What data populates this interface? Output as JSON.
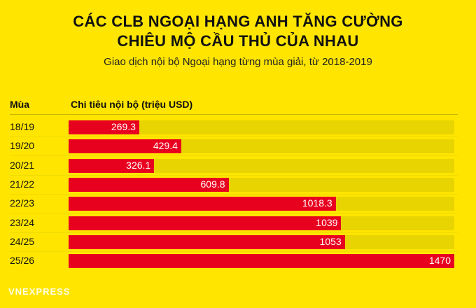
{
  "header": {
    "title_line1": "CÁC CLB NGOẠI HẠNG ANH TĂNG CƯỜNG",
    "title_line2": "CHIÊU MỘ CẦU THỦ CỦA NHAU",
    "subtitle": "Giao dịch nội bộ Ngoại hạng từng mùa giải, từ 2018-2019"
  },
  "columns": {
    "season": "Mùa",
    "spend": "Chi tiêu nội bộ (triệu USD)"
  },
  "logo": {
    "text": "VNEXPRESS"
  },
  "colors": {
    "background": "#ffe500",
    "bar": "#e8001f",
    "track": "#e8d400"
  },
  "chart_data": {
    "type": "bar",
    "orientation": "horizontal",
    "title": "CÁC CLB NGOẠI HẠNG ANH TĂNG CƯỜNG CHIÊU MỘ CẦU THỦ CỦA NHAU",
    "subtitle": "Giao dịch nội bộ Ngoại hạng từng mùa giải, từ 2018-2019",
    "xlabel": "Chi tiêu nội bộ (triệu USD)",
    "ylabel": "Mùa",
    "categories": [
      "18/19",
      "19/20",
      "20/21",
      "21/22",
      "22/23",
      "23/24",
      "24/25",
      "25/26"
    ],
    "values": [
      269.3,
      429.4,
      326.1,
      609.8,
      1018.3,
      1039,
      1053,
      1470
    ],
    "value_labels": [
      "269.3",
      "429.4",
      "326.1",
      "609.8",
      "1018.3",
      "1039",
      "1053",
      "1470"
    ],
    "xlim": [
      0,
      1470
    ]
  }
}
